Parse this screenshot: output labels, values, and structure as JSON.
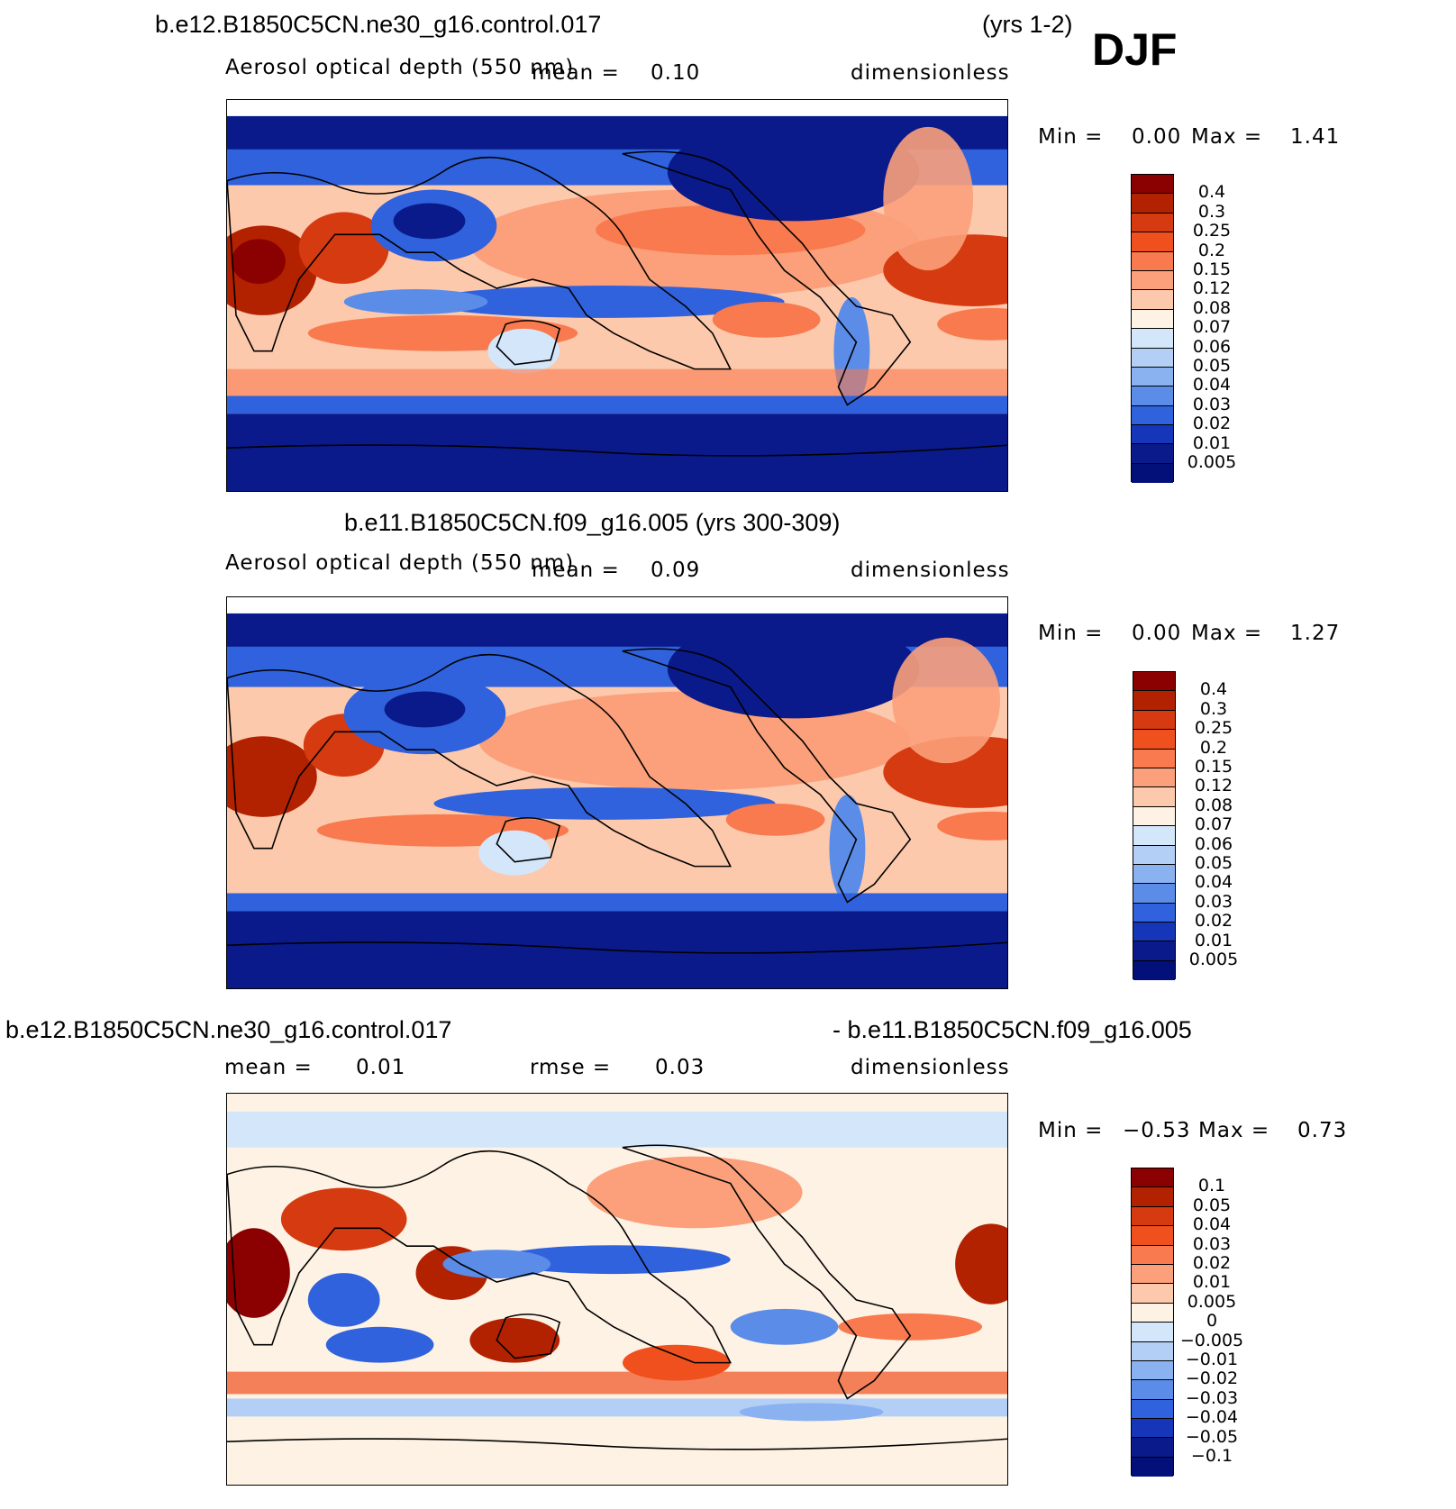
{
  "season": "DJF",
  "panels": [
    {
      "case": "b.e12.B1850C5CN.ne30_g16.control.017",
      "years": "(yrs 1-2)",
      "variable": "Aerosol optical depth (550 nm)",
      "stat_label": "mean =",
      "stat_value": "0.10",
      "units": "dimensionless",
      "min_label": "Min =",
      "min_value": "0.00",
      "max_label": "Max =",
      "max_value": "1.41",
      "levels": [
        "0.4",
        "0.3",
        "0.25",
        "0.2",
        "0.15",
        "0.12",
        "0.08",
        "0.07",
        "0.06",
        "0.05",
        "0.04",
        "0.03",
        "0.02",
        "0.01",
        "0.005"
      ],
      "colors": [
        "#8b0000",
        "#b22200",
        "#d63a10",
        "#f0501e",
        "#f87a4e",
        "#fba07a",
        "#fdc9ac",
        "#fef2e4",
        "#d4e6fa",
        "#b4cff5",
        "#8ab2f0",
        "#5a8ce8",
        "#2f62dc",
        "#1536b8",
        "#0a1a8a",
        "#03107a"
      ]
    },
    {
      "case": "b.e11.B1850C5CN.f09_g16.005 (yrs 300-309)",
      "variable": "Aerosol optical depth (550 nm)",
      "stat_label": "mean =",
      "stat_value": "0.09",
      "units": "dimensionless",
      "min_label": "Min =",
      "min_value": "0.00",
      "max_label": "Max =",
      "max_value": "1.27",
      "levels": [
        "0.4",
        "0.3",
        "0.25",
        "0.2",
        "0.15",
        "0.12",
        "0.08",
        "0.07",
        "0.06",
        "0.05",
        "0.04",
        "0.03",
        "0.02",
        "0.01",
        "0.005"
      ],
      "colors": [
        "#8b0000",
        "#b22200",
        "#d63a10",
        "#f0501e",
        "#f87a4e",
        "#fba07a",
        "#fdc9ac",
        "#fef2e4",
        "#d4e6fa",
        "#b4cff5",
        "#8ab2f0",
        "#5a8ce8",
        "#2f62dc",
        "#1536b8",
        "#0a1a8a",
        "#03107a"
      ]
    },
    {
      "case_left": "b.e12.B1850C5CN.ne30_g16.control.017",
      "case_right": "- b.e11.B1850C5CN.f09_g16.005",
      "stat_label": "mean =",
      "stat_value": "0.01",
      "rmse_label": "rmse =",
      "rmse_value": "0.03",
      "units": "dimensionless",
      "min_label": "Min =",
      "min_value": "−0.53",
      "max_label": "Max =",
      "max_value": "0.73",
      "levels": [
        "0.1",
        "0.05",
        "0.04",
        "0.03",
        "0.02",
        "0.01",
        "0.005",
        "0",
        "−0.005",
        "−0.01",
        "−0.02",
        "−0.03",
        "−0.04",
        "−0.05",
        "−0.1"
      ],
      "colors": [
        "#8b0000",
        "#b22200",
        "#d63a10",
        "#f0501e",
        "#f87a4e",
        "#fba07a",
        "#fdc9ac",
        "#fef2e4",
        "#d4e6fa",
        "#b4cff5",
        "#8ab2f0",
        "#5a8ce8",
        "#2f62dc",
        "#1536b8",
        "#0a1a8a",
        "#03107a"
      ]
    }
  ]
}
